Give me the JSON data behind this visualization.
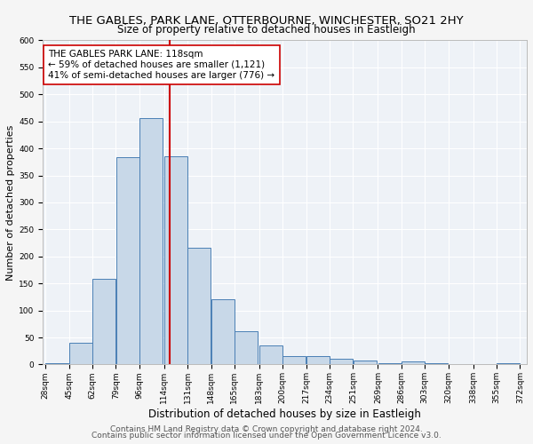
{
  "title": "THE GABLES, PARK LANE, OTTERBOURNE, WINCHESTER, SO21 2HY",
  "subtitle": "Size of property relative to detached houses in Eastleigh",
  "xlabel": "Distribution of detached houses by size in Eastleigh",
  "ylabel": "Number of detached properties",
  "bar_left_edges": [
    28,
    45,
    62,
    79,
    96,
    114,
    131,
    148,
    165,
    183,
    200,
    217,
    234,
    251,
    269,
    286,
    303,
    320,
    338,
    355
  ],
  "bar_heights": [
    2,
    40,
    158,
    383,
    456,
    386,
    216,
    120,
    61,
    35,
    15,
    15,
    10,
    7,
    3,
    5,
    2,
    1,
    1,
    2
  ],
  "bin_width": 17,
  "bar_color": "#c8d8e8",
  "bar_edge_color": "#4a7fb5",
  "vline_x": 118,
  "vline_color": "#cc0000",
  "annotation_line1": "THE GABLES PARK LANE: 118sqm",
  "annotation_line2": "← 59% of detached houses are smaller (1,121)",
  "annotation_line3": "41% of semi-detached houses are larger (776) →",
  "annotation_box_color": "white",
  "annotation_box_edge": "#cc0000",
  "xlim_left": 28,
  "xlim_right": 372,
  "ylim_top": 600,
  "yticks": [
    0,
    50,
    100,
    150,
    200,
    250,
    300,
    350,
    400,
    450,
    500,
    550,
    600
  ],
  "x_tick_labels": [
    "28sqm",
    "45sqm",
    "62sqm",
    "79sqm",
    "96sqm",
    "114sqm",
    "131sqm",
    "148sqm",
    "165sqm",
    "183sqm",
    "200sqm",
    "217sqm",
    "234sqm",
    "251sqm",
    "269sqm",
    "286sqm",
    "303sqm",
    "320sqm",
    "338sqm",
    "355sqm",
    "372sqm"
  ],
  "x_tick_positions": [
    28,
    45,
    62,
    79,
    96,
    114,
    131,
    148,
    165,
    183,
    200,
    217,
    234,
    251,
    269,
    286,
    303,
    320,
    338,
    355,
    372
  ],
  "footnote1": "Contains HM Land Registry data © Crown copyright and database right 2024.",
  "footnote2": "Contains public sector information licensed under the Open Government Licence v3.0.",
  "bg_color": "#eef2f7",
  "grid_color": "#ffffff",
  "fig_bg_color": "#f5f5f5",
  "title_fontsize": 9.5,
  "subtitle_fontsize": 8.5,
  "xlabel_fontsize": 8.5,
  "ylabel_fontsize": 8,
  "tick_fontsize": 6.5,
  "annotation_fontsize": 7.5,
  "footnote_fontsize": 6.5
}
